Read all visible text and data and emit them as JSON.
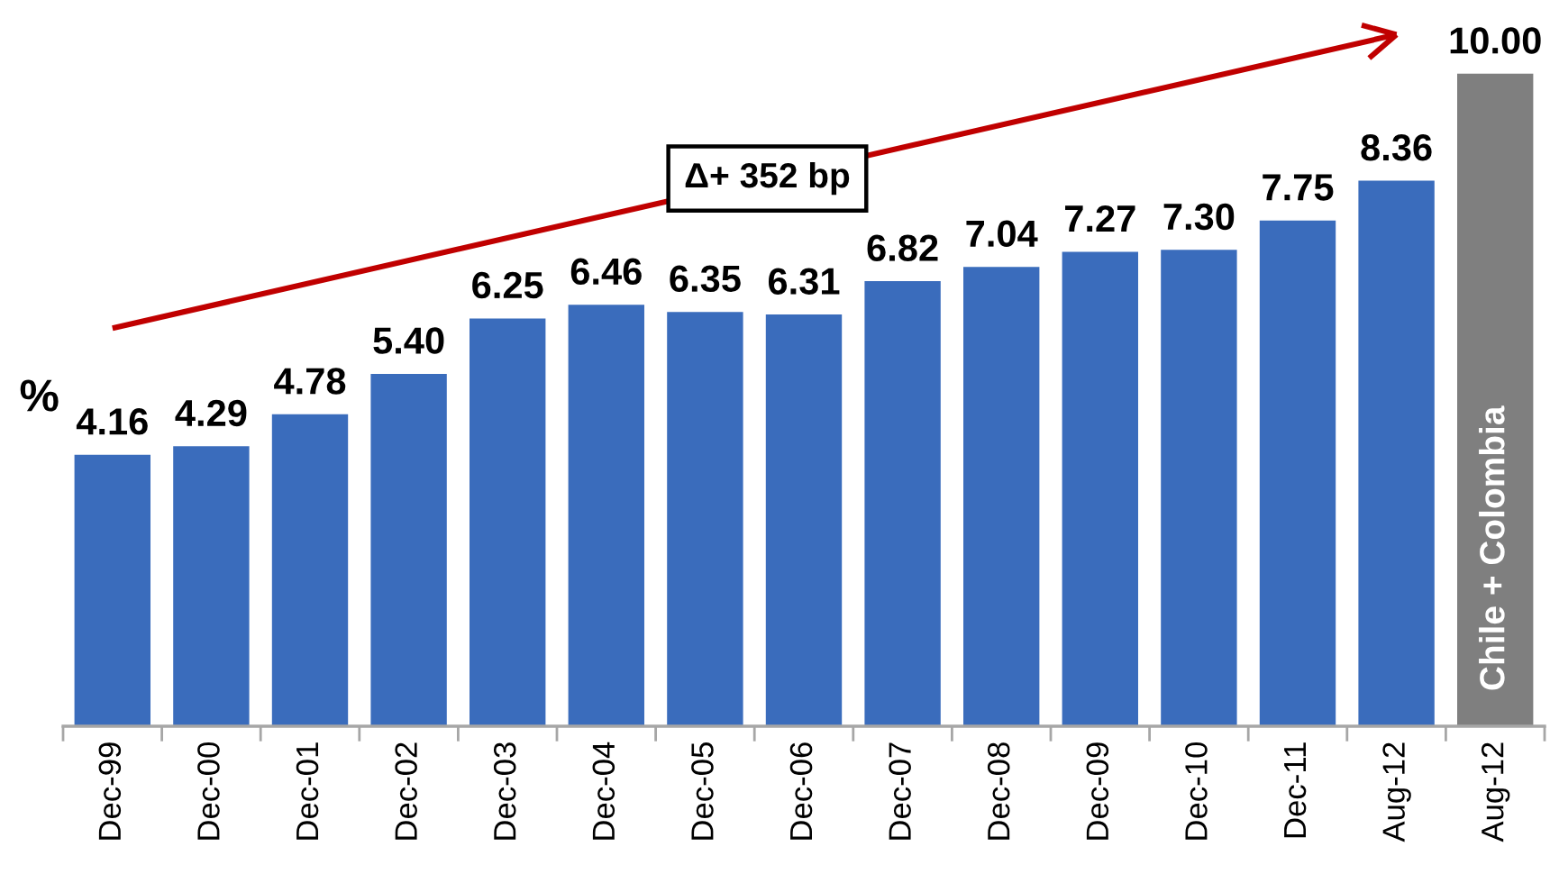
{
  "chart_data": {
    "type": "bar",
    "ylabel": "%",
    "categories": [
      "Dec-99",
      "Dec-00",
      "Dec-01",
      "Dec-02",
      "Dec-03",
      "Dec-04",
      "Dec-05",
      "Dec-06",
      "Dec-07",
      "Dec-08",
      "Dec-09",
      "Dec-10",
      "Dec-11",
      "Aug-12",
      "Aug-12"
    ],
    "series": [
      {
        "color": "#3a6cbc",
        "values": [
          4.16,
          4.29,
          4.78,
          5.4,
          6.25,
          6.46,
          6.35,
          6.31,
          6.82,
          7.04,
          7.27,
          7.3,
          7.75,
          8.36,
          null
        ],
        "value_labels": [
          "4.16",
          "4.29",
          "4.78",
          "5.40",
          "6.25",
          "6.46",
          "6.35",
          "6.31",
          "6.82",
          "7.04",
          "7.27",
          "7.30",
          "7.75",
          "8.36",
          null
        ]
      },
      {
        "name": "Chile + Colombia",
        "color": "#7f7f7f",
        "values": [
          null,
          null,
          null,
          null,
          null,
          null,
          null,
          null,
          null,
          null,
          null,
          null,
          null,
          null,
          10.0
        ],
        "value_labels": [
          null,
          null,
          null,
          null,
          null,
          null,
          null,
          null,
          null,
          null,
          null,
          null,
          null,
          null,
          "10.00"
        ]
      },
      {
        "type": "line",
        "color": "#c00000",
        "values": [
          6.1,
          null,
          null,
          null,
          null,
          null,
          null,
          null,
          null,
          null,
          null,
          null,
          null,
          10.6,
          null
        ]
      }
    ],
    "tick_labels": "x",
    "grid": false,
    "legend": false,
    "annotations": [
      "Δ+ 352 bp"
    ]
  }
}
